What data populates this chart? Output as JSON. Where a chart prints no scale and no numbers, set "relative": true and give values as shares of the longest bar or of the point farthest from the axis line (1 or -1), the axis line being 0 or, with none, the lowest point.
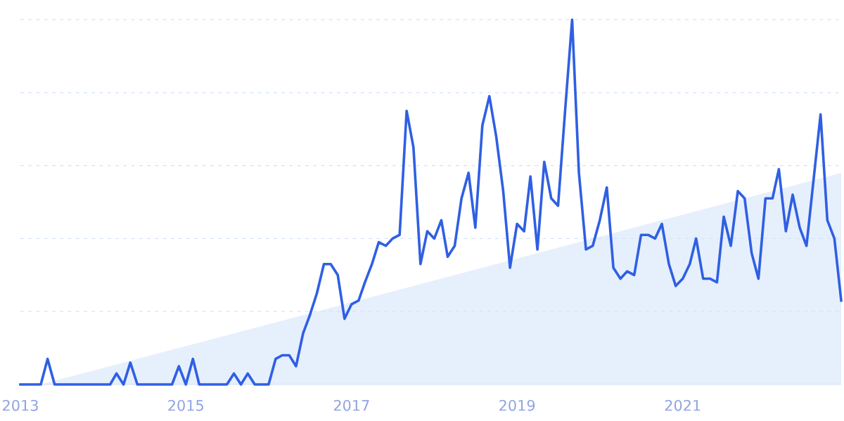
{
  "chart_data": {
    "type": "line",
    "relative": true,
    "x": [
      "2013-01",
      "2013-02",
      "2013-03",
      "2013-04",
      "2013-05",
      "2013-06",
      "2013-07",
      "2013-08",
      "2013-09",
      "2013-10",
      "2013-11",
      "2013-12",
      "2014-01",
      "2014-02",
      "2014-03",
      "2014-04",
      "2014-05",
      "2014-06",
      "2014-07",
      "2014-08",
      "2014-09",
      "2014-10",
      "2014-11",
      "2014-12",
      "2015-01",
      "2015-02",
      "2015-03",
      "2015-04",
      "2015-05",
      "2015-06",
      "2015-07",
      "2015-08",
      "2015-09",
      "2015-10",
      "2015-11",
      "2015-12",
      "2016-01",
      "2016-02",
      "2016-03",
      "2016-04",
      "2016-05",
      "2016-06",
      "2016-07",
      "2016-08",
      "2016-09",
      "2016-10",
      "2016-11",
      "2016-12",
      "2017-01",
      "2017-02",
      "2017-03",
      "2017-04",
      "2017-05",
      "2017-06",
      "2017-07",
      "2017-08",
      "2017-09",
      "2017-10",
      "2017-11",
      "2017-12",
      "2018-01",
      "2018-02",
      "2018-03",
      "2018-04",
      "2018-05",
      "2018-06",
      "2018-07",
      "2018-08",
      "2018-09",
      "2018-10",
      "2018-11",
      "2018-12",
      "2019-01",
      "2019-02",
      "2019-03",
      "2019-04",
      "2019-05",
      "2019-06",
      "2019-07",
      "2019-08",
      "2019-09",
      "2019-10",
      "2019-11",
      "2019-12",
      "2020-01",
      "2020-02",
      "2020-03",
      "2020-04",
      "2020-05",
      "2020-06",
      "2020-07",
      "2020-08",
      "2020-09",
      "2020-10",
      "2020-11",
      "2020-12",
      "2021-01",
      "2021-02",
      "2021-03",
      "2021-04",
      "2021-05",
      "2021-06",
      "2021-07",
      "2021-08",
      "2021-09",
      "2021-10",
      "2021-11",
      "2021-12",
      "2022-01",
      "2022-02",
      "2022-03",
      "2022-04",
      "2022-05",
      "2022-06",
      "2022-07",
      "2022-08",
      "2022-09",
      "2022-10",
      "2022-11",
      "2022-12"
    ],
    "series": [
      {
        "type": "area",
        "color": "#e6effc",
        "x": [
          "2013-04",
          "2022-12"
        ],
        "values": [
          0,
          0.58
        ]
      },
      {
        "color": "#2f5fe3",
        "values": [
          0,
          0,
          0,
          0,
          0.07,
          0,
          0,
          0,
          0,
          0,
          0,
          0,
          0,
          0,
          0.03,
          0,
          0.06,
          0,
          0,
          0,
          0,
          0,
          0,
          0.05,
          0,
          0.07,
          0,
          0,
          0,
          0,
          0,
          0.03,
          0,
          0.03,
          0,
          0,
          0,
          0.07,
          0.08,
          0.08,
          0.05,
          0.14,
          0.19,
          0.25,
          0.33,
          0.33,
          0.3,
          0.18,
          0.22,
          0.23,
          0.28,
          0.33,
          0.39,
          0.38,
          0.4,
          0.41,
          0.75,
          0.65,
          0.33,
          0.42,
          0.4,
          0.45,
          0.35,
          0.38,
          0.51,
          0.58,
          0.43,
          0.71,
          0.79,
          0.68,
          0.53,
          0.32,
          0.44,
          0.42,
          0.57,
          0.37,
          0.61,
          0.51,
          0.49,
          0.75,
          1,
          0.58,
          0.37,
          0.38,
          0.45,
          0.54,
          0.32,
          0.29,
          0.31,
          0.3,
          0.41,
          0.41,
          0.4,
          0.44,
          0.33,
          0.27,
          0.29,
          0.33,
          0.4,
          0.29,
          0.29,
          0.28,
          0.46,
          0.38,
          0.53,
          0.51,
          0.36,
          0.29,
          0.51,
          0.51,
          0.59,
          0.42,
          0.52,
          0.43,
          0.38,
          0.56,
          0.74,
          0.45,
          0.4,
          0.23
        ]
      }
    ],
    "xlim": [
      "2013-01",
      "2022-12"
    ],
    "xticks": [
      {
        "value": "2013",
        "label": "2013"
      },
      {
        "value": "2015",
        "label": "2015"
      },
      {
        "value": "2017",
        "label": "2017"
      },
      {
        "value": "2019",
        "label": "2019"
      },
      {
        "value": "2021",
        "label": "2021"
      }
    ],
    "grid": "y",
    "legend": false,
    "marker": "none",
    "line_style": "solid"
  }
}
